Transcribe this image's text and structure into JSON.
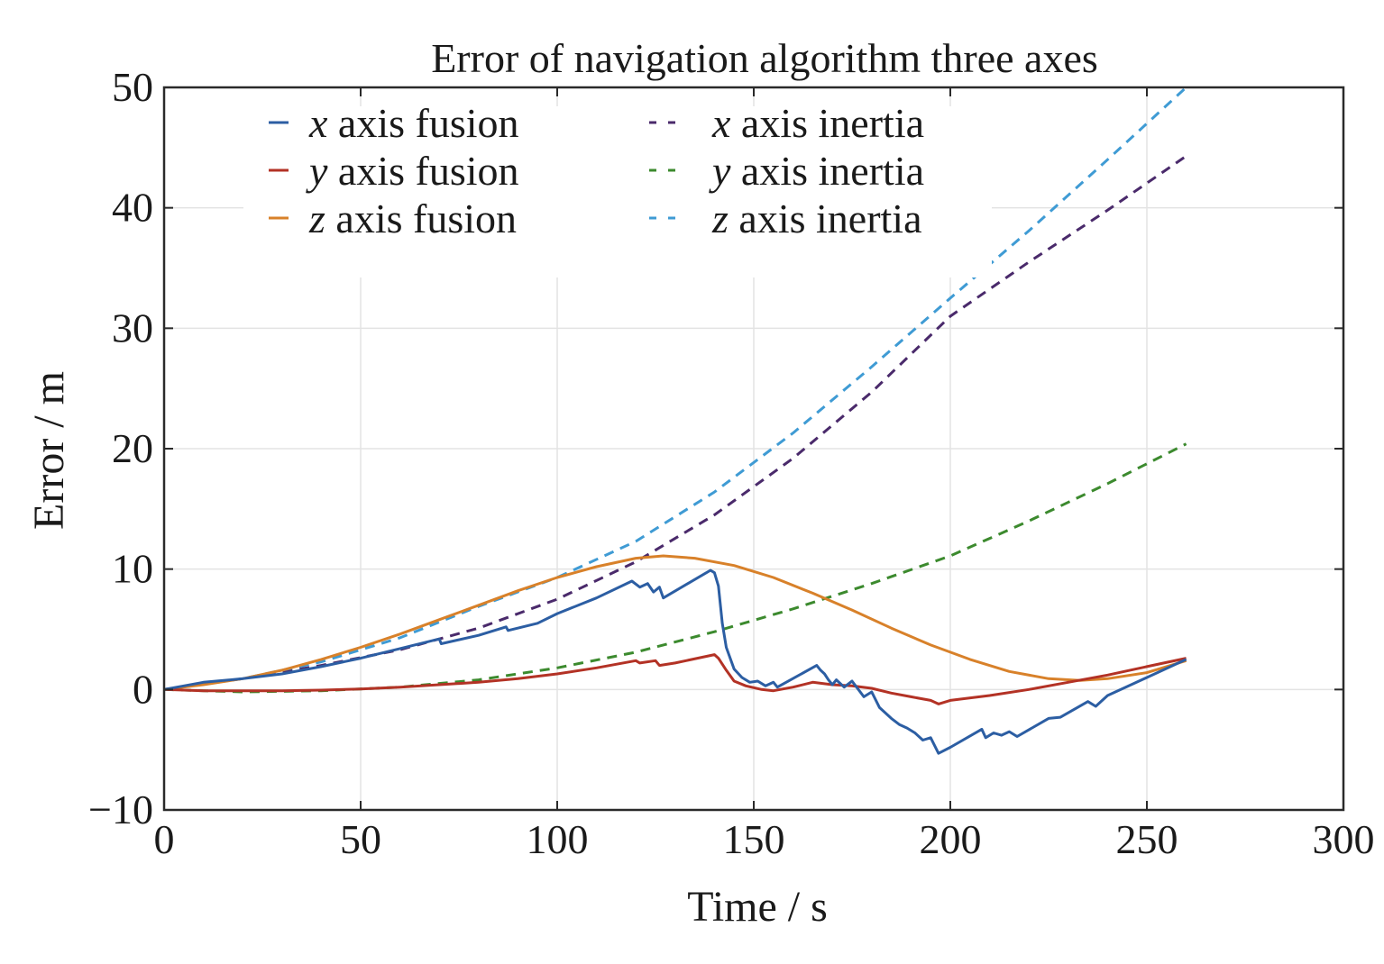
{
  "chart_data": {
    "type": "line",
    "title": "Error of navigation algorithm three axes",
    "xlabel": "Time / s",
    "ylabel": "Error / m",
    "xlim": [
      0,
      300
    ],
    "ylim": [
      -10,
      50
    ],
    "xticks": [
      "0",
      "50",
      "100",
      "150",
      "200",
      "250",
      "300"
    ],
    "yticks": [
      "−10",
      "0",
      "10",
      "20",
      "30",
      "40",
      "50"
    ],
    "grid": true,
    "legend_position": "top-left",
    "legend": [
      {
        "var": "x",
        "text": " axis fusion"
      },
      {
        "var": "y",
        "text": " axis fusion"
      },
      {
        "var": "z",
        "text": " axis fusion"
      },
      {
        "var": "x",
        "text": " axis inertia"
      },
      {
        "var": "y",
        "text": " axis inertia"
      },
      {
        "var": "z",
        "text": " axis inertia"
      }
    ],
    "series": [
      {
        "name": "x axis fusion",
        "color": "#2c5ea3",
        "dash": "solid",
        "points": [
          [
            0,
            0
          ],
          [
            5,
            0.3
          ],
          [
            10,
            0.6
          ],
          [
            20,
            0.9
          ],
          [
            30,
            1.3
          ],
          [
            40,
            1.9
          ],
          [
            50,
            2.6
          ],
          [
            60,
            3.4
          ],
          [
            70,
            4.2
          ],
          [
            70.5,
            3.8
          ],
          [
            80,
            4.5
          ],
          [
            87,
            5.2
          ],
          [
            87.5,
            4.9
          ],
          [
            95,
            5.5
          ],
          [
            100,
            6.3
          ],
          [
            110,
            7.6
          ],
          [
            119,
            9.0
          ],
          [
            121,
            8.5
          ],
          [
            123,
            8.8
          ],
          [
            124.5,
            8.1
          ],
          [
            126,
            8.5
          ],
          [
            127,
            7.6
          ],
          [
            139,
            9.9
          ],
          [
            140,
            9.7
          ],
          [
            141,
            8.6
          ],
          [
            142,
            5.5
          ],
          [
            143,
            3.5
          ],
          [
            145,
            1.7
          ],
          [
            147,
            1.0
          ],
          [
            149,
            0.6
          ],
          [
            151,
            0.7
          ],
          [
            153,
            0.3
          ],
          [
            155,
            0.6
          ],
          [
            156,
            0.2
          ],
          [
            166,
            2.0
          ],
          [
            167,
            1.6
          ],
          [
            168,
            1.3
          ],
          [
            169,
            0.8
          ],
          [
            170,
            0.4
          ],
          [
            171,
            0.8
          ],
          [
            173,
            0.2
          ],
          [
            175,
            0.7
          ],
          [
            178,
            -0.6
          ],
          [
            180,
            -0.2
          ],
          [
            182,
            -1.5
          ],
          [
            185,
            -2.4
          ],
          [
            187,
            -2.9
          ],
          [
            189,
            -3.2
          ],
          [
            191,
            -3.6
          ],
          [
            193,
            -4.2
          ],
          [
            195,
            -4.0
          ],
          [
            197,
            -5.3
          ],
          [
            200,
            -4.8
          ],
          [
            208,
            -3.3
          ],
          [
            209,
            -4.0
          ],
          [
            211,
            -3.6
          ],
          [
            213,
            -3.8
          ],
          [
            215,
            -3.5
          ],
          [
            217,
            -3.9
          ],
          [
            225,
            -2.4
          ],
          [
            228,
            -2.3
          ],
          [
            235,
            -1.0
          ],
          [
            237,
            -1.4
          ],
          [
            240,
            -0.5
          ],
          [
            250,
            1.0
          ],
          [
            260,
            2.5
          ]
        ]
      },
      {
        "name": "y axis fusion",
        "color": "#b33225",
        "dash": "solid",
        "points": [
          [
            0,
            0
          ],
          [
            10,
            -0.1
          ],
          [
            20,
            -0.1
          ],
          [
            30,
            -0.1
          ],
          [
            40,
            -0.05
          ],
          [
            50,
            0.05
          ],
          [
            60,
            0.2
          ],
          [
            70,
            0.4
          ],
          [
            80,
            0.6
          ],
          [
            90,
            0.9
          ],
          [
            100,
            1.3
          ],
          [
            110,
            1.8
          ],
          [
            120,
            2.4
          ],
          [
            121,
            2.2
          ],
          [
            125,
            2.4
          ],
          [
            126,
            2.0
          ],
          [
            130,
            2.2
          ],
          [
            140,
            2.9
          ],
          [
            141,
            2.6
          ],
          [
            143,
            1.6
          ],
          [
            145,
            0.7
          ],
          [
            148,
            0.3
          ],
          [
            152,
            0.0
          ],
          [
            155,
            -0.1
          ],
          [
            160,
            0.2
          ],
          [
            165,
            0.6
          ],
          [
            170,
            0.4
          ],
          [
            175,
            0.3
          ],
          [
            180,
            0.1
          ],
          [
            185,
            -0.3
          ],
          [
            190,
            -0.6
          ],
          [
            195,
            -0.9
          ],
          [
            197,
            -1.2
          ],
          [
            200,
            -0.9
          ],
          [
            210,
            -0.5
          ],
          [
            220,
            0.0
          ],
          [
            230,
            0.6
          ],
          [
            240,
            1.2
          ],
          [
            250,
            1.9
          ],
          [
            260,
            2.6
          ]
        ]
      },
      {
        "name": "z axis fusion",
        "color": "#d8812a",
        "dash": "solid",
        "points": [
          [
            0,
            0
          ],
          [
            10,
            0.4
          ],
          [
            20,
            0.9
          ],
          [
            30,
            1.6
          ],
          [
            40,
            2.5
          ],
          [
            50,
            3.5
          ],
          [
            60,
            4.6
          ],
          [
            70,
            5.8
          ],
          [
            80,
            7.0
          ],
          [
            90,
            8.2
          ],
          [
            100,
            9.3
          ],
          [
            110,
            10.2
          ],
          [
            120,
            10.9
          ],
          [
            127,
            11.1
          ],
          [
            135,
            10.9
          ],
          [
            145,
            10.3
          ],
          [
            155,
            9.3
          ],
          [
            165,
            8.0
          ],
          [
            175,
            6.6
          ],
          [
            185,
            5.1
          ],
          [
            195,
            3.7
          ],
          [
            205,
            2.5
          ],
          [
            215,
            1.5
          ],
          [
            225,
            0.9
          ],
          [
            233,
            0.75
          ],
          [
            240,
            0.9
          ],
          [
            250,
            1.4
          ],
          [
            260,
            2.4
          ]
        ]
      },
      {
        "name": "x axis inertia",
        "color": "#4a2a6b",
        "dash": "dashed",
        "points": [
          [
            0,
            0
          ],
          [
            20,
            0.9
          ],
          [
            40,
            2.0
          ],
          [
            60,
            3.3
          ],
          [
            80,
            5.1
          ],
          [
            100,
            7.5
          ],
          [
            120,
            10.6
          ],
          [
            140,
            14.5
          ],
          [
            160,
            19.2
          ],
          [
            180,
            24.7
          ],
          [
            200,
            31.0
          ],
          [
            220,
            35.5
          ],
          [
            240,
            39.8
          ],
          [
            260,
            44.3
          ]
        ]
      },
      {
        "name": "y axis inertia",
        "color": "#3c8a2e",
        "dash": "dashed",
        "points": [
          [
            0,
            0
          ],
          [
            20,
            -0.2
          ],
          [
            40,
            -0.1
          ],
          [
            60,
            0.2
          ],
          [
            80,
            0.8
          ],
          [
            100,
            1.8
          ],
          [
            120,
            3.1
          ],
          [
            140,
            4.8
          ],
          [
            160,
            6.7
          ],
          [
            180,
            8.8
          ],
          [
            200,
            11.1
          ],
          [
            220,
            14.0
          ],
          [
            240,
            17.1
          ],
          [
            260,
            20.4
          ]
        ]
      },
      {
        "name": "z axis inertia",
        "color": "#3f9bd4",
        "dash": "dashed",
        "points": [
          [
            0,
            0
          ],
          [
            20,
            0.9
          ],
          [
            40,
            2.3
          ],
          [
            60,
            4.3
          ],
          [
            80,
            6.9
          ],
          [
            100,
            9.3
          ],
          [
            120,
            12.3
          ],
          [
            140,
            16.4
          ],
          [
            160,
            21.3
          ],
          [
            180,
            26.8
          ],
          [
            200,
            32.5
          ],
          [
            220,
            38.1
          ],
          [
            240,
            44.0
          ],
          [
            260,
            50.0
          ]
        ]
      }
    ]
  }
}
